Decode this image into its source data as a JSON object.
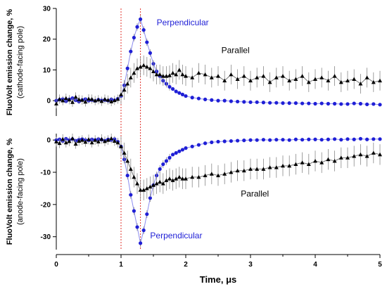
{
  "chart_data": [
    {
      "type": "scatter",
      "panel": "top",
      "ylabel": "FluoVolt emission change, %",
      "ylabel_sub": "(cathode-facing pole)",
      "xlabel": "",
      "xlim": [
        0,
        5
      ],
      "ylim": [
        -5,
        30
      ],
      "yticks": [
        0,
        10,
        20,
        30
      ],
      "ytick_labels": [
        "0",
        "10",
        "20",
        "30"
      ],
      "x": [
        0,
        0.05,
        0.1,
        0.15,
        0.2,
        0.25,
        0.3,
        0.35,
        0.4,
        0.45,
        0.5,
        0.55,
        0.6,
        0.65,
        0.7,
        0.75,
        0.8,
        0.85,
        0.9,
        0.95,
        1.0,
        1.05,
        1.1,
        1.15,
        1.2,
        1.25,
        1.3,
        1.35,
        1.4,
        1.45,
        1.5,
        1.55,
        1.6,
        1.65,
        1.7,
        1.75,
        1.8,
        1.85,
        1.9,
        1.95,
        2.0,
        2.1,
        2.2,
        2.3,
        2.4,
        2.5,
        2.6,
        2.7,
        2.8,
        2.9,
        3.0,
        3.1,
        3.2,
        3.3,
        3.4,
        3.5,
        3.6,
        3.7,
        3.8,
        3.9,
        4.0,
        4.1,
        4.2,
        4.3,
        4.4,
        4.5,
        4.6,
        4.7,
        4.8,
        4.9,
        5.0
      ],
      "series": [
        {
          "name": "Perpendicular",
          "color": "#1f1fd6",
          "marker": "circle",
          "values": [
            0,
            0.3,
            0.5,
            -0.2,
            0.4,
            0.8,
            0.1,
            -0.3,
            0.2,
            0.5,
            0,
            0.2,
            -0.1,
            0.3,
            0.1,
            0.2,
            0,
            0.4,
            0.1,
            0.6,
            1.5,
            5,
            10.5,
            16,
            20.5,
            24,
            26.5,
            23,
            19,
            15.5,
            12,
            9.5,
            8,
            6.5,
            5.5,
            4.5,
            3.8,
            3,
            2.5,
            2,
            1.5,
            1,
            0.7,
            0.4,
            0.2,
            0,
            0,
            -0.2,
            -0.3,
            -0.4,
            -0.5,
            -0.5,
            -0.6,
            -0.7,
            -0.7,
            -0.8,
            -0.8,
            -0.8,
            -0.9,
            -0.9,
            -1,
            -0.9,
            -1,
            -1,
            -1.1,
            -1.1,
            -0.9,
            -1,
            -1.2,
            -1.1,
            -1.3
          ]
        },
        {
          "name": "Parallel",
          "color": "#000000",
          "marker": "triangle",
          "values": [
            -1,
            0.5,
            0,
            0.8,
            0.3,
            -0.5,
            1.2,
            0.4,
            0.2,
            -0.4,
            0.6,
            0.5,
            0,
            0.3,
            -0.2,
            0.5,
            0.2,
            -0.3,
            0.1,
            0.5,
            2,
            3.5,
            5.5,
            7.5,
            9,
            10.5,
            11,
            11.5,
            11,
            10.5,
            9.5,
            8.5,
            8.5,
            8,
            8,
            8.2,
            9,
            8.5,
            10,
            8.5,
            8,
            7.5,
            9,
            8.5,
            7.5,
            8,
            6.5,
            8.5,
            7,
            8,
            6.5,
            7.5,
            8,
            6,
            7.5,
            8,
            6.5,
            7,
            8,
            6,
            7,
            7.5,
            6.5,
            8,
            6,
            6.5,
            7,
            5.5,
            7.5,
            6,
            6.5
          ]
        }
      ],
      "annotations": [
        {
          "text": "Perpendicular",
          "x": 1.55,
          "y": 24.5,
          "color": "#1f1fd6"
        },
        {
          "text": "Parallel",
          "x": 2.55,
          "y": 15.5,
          "color": "#000000"
        }
      ]
    },
    {
      "type": "scatter",
      "panel": "bottom",
      "ylabel": "FluoVolt emission change, %",
      "ylabel_sub": "(anode-facing pole)",
      "xlabel": "Time, μs",
      "xlim": [
        0,
        5
      ],
      "ylim": [
        -34,
        2
      ],
      "yticks": [
        0,
        -10,
        -20,
        -30
      ],
      "ytick_labels": [
        "0",
        "-10",
        "-20",
        "-30"
      ],
      "xticks": [
        0,
        1,
        2,
        3,
        4,
        5
      ],
      "xtick_labels": [
        "0",
        "1",
        "2",
        "3",
        "4",
        "5"
      ],
      "x": [
        0,
        0.05,
        0.1,
        0.15,
        0.2,
        0.25,
        0.3,
        0.35,
        0.4,
        0.45,
        0.5,
        0.55,
        0.6,
        0.65,
        0.7,
        0.75,
        0.8,
        0.85,
        0.9,
        0.95,
        1.0,
        1.05,
        1.1,
        1.15,
        1.2,
        1.25,
        1.3,
        1.35,
        1.4,
        1.45,
        1.5,
        1.55,
        1.6,
        1.65,
        1.7,
        1.75,
        1.8,
        1.85,
        1.9,
        1.95,
        2.0,
        2.1,
        2.2,
        2.3,
        2.4,
        2.5,
        2.6,
        2.7,
        2.8,
        2.9,
        3.0,
        3.1,
        3.2,
        3.3,
        3.4,
        3.5,
        3.6,
        3.7,
        3.8,
        3.9,
        4.0,
        4.1,
        4.2,
        4.3,
        4.4,
        4.5,
        4.6,
        4.7,
        4.8,
        4.9,
        5.0
      ],
      "series": [
        {
          "name": "Perpendicular",
          "color": "#1f1fd6",
          "marker": "circle",
          "values": [
            0,
            0.2,
            -0.3,
            0.4,
            0,
            0.3,
            -0.2,
            0.1,
            0.3,
            0,
            -0.1,
            0.2,
            0,
            0.3,
            0.1,
            -0.2,
            0.2,
            0,
            0.3,
            -0.5,
            -2,
            -6,
            -11,
            -17,
            -22,
            -27,
            -32,
            -28,
            -23,
            -18,
            -14,
            -11,
            -9,
            -7.5,
            -6.5,
            -5.5,
            -4.5,
            -4,
            -3.5,
            -3,
            -2.5,
            -2,
            -1.5,
            -1,
            -0.7,
            -0.5,
            -0.4,
            -0.3,
            -0.2,
            -0.1,
            0,
            0,
            0.1,
            0,
            0.1,
            0.1,
            0,
            0.2,
            0.1,
            0.2,
            0.2,
            0.1,
            0.2,
            0.3,
            0.1,
            0.3,
            0.2,
            0.4,
            0.2,
            0.3,
            0.3
          ]
        },
        {
          "name": "Parallel",
          "color": "#000000",
          "marker": "triangle",
          "values": [
            -0.5,
            -1,
            0.3,
            -0.8,
            -0.4,
            0.5,
            -1.2,
            -0.3,
            0,
            -0.6,
            0.2,
            -0.8,
            0,
            -0.5,
            0.3,
            -0.4,
            0,
            0.5,
            -0.3,
            -0.8,
            -2,
            -4,
            -6.5,
            -9,
            -11.5,
            -13.5,
            -15.5,
            -15.5,
            -15,
            -14.5,
            -14,
            -13.5,
            -13,
            -13.5,
            -12.5,
            -12,
            -12.5,
            -12,
            -11.5,
            -12,
            -12,
            -11.5,
            -11.5,
            -11,
            -10.5,
            -11,
            -10.5,
            -10,
            -9.5,
            -9.5,
            -9,
            -9,
            -9,
            -8.5,
            -8.5,
            -8,
            -8,
            -7.5,
            -7,
            -7.5,
            -6.5,
            -7,
            -6,
            -6.5,
            -5.5,
            -5.5,
            -5,
            -4.5,
            -5,
            -4,
            -4.5
          ]
        }
      ],
      "annotations": [
        {
          "text": "Parallel",
          "x": 2.85,
          "y": -17.5,
          "color": "#000000"
        },
        {
          "text": "Perpendicular",
          "x": 1.45,
          "y": -30.5,
          "color": "#1f1fd6"
        }
      ]
    }
  ],
  "vlines": {
    "x": [
      1.0,
      1.3
    ],
    "color": "#e0302a"
  }
}
